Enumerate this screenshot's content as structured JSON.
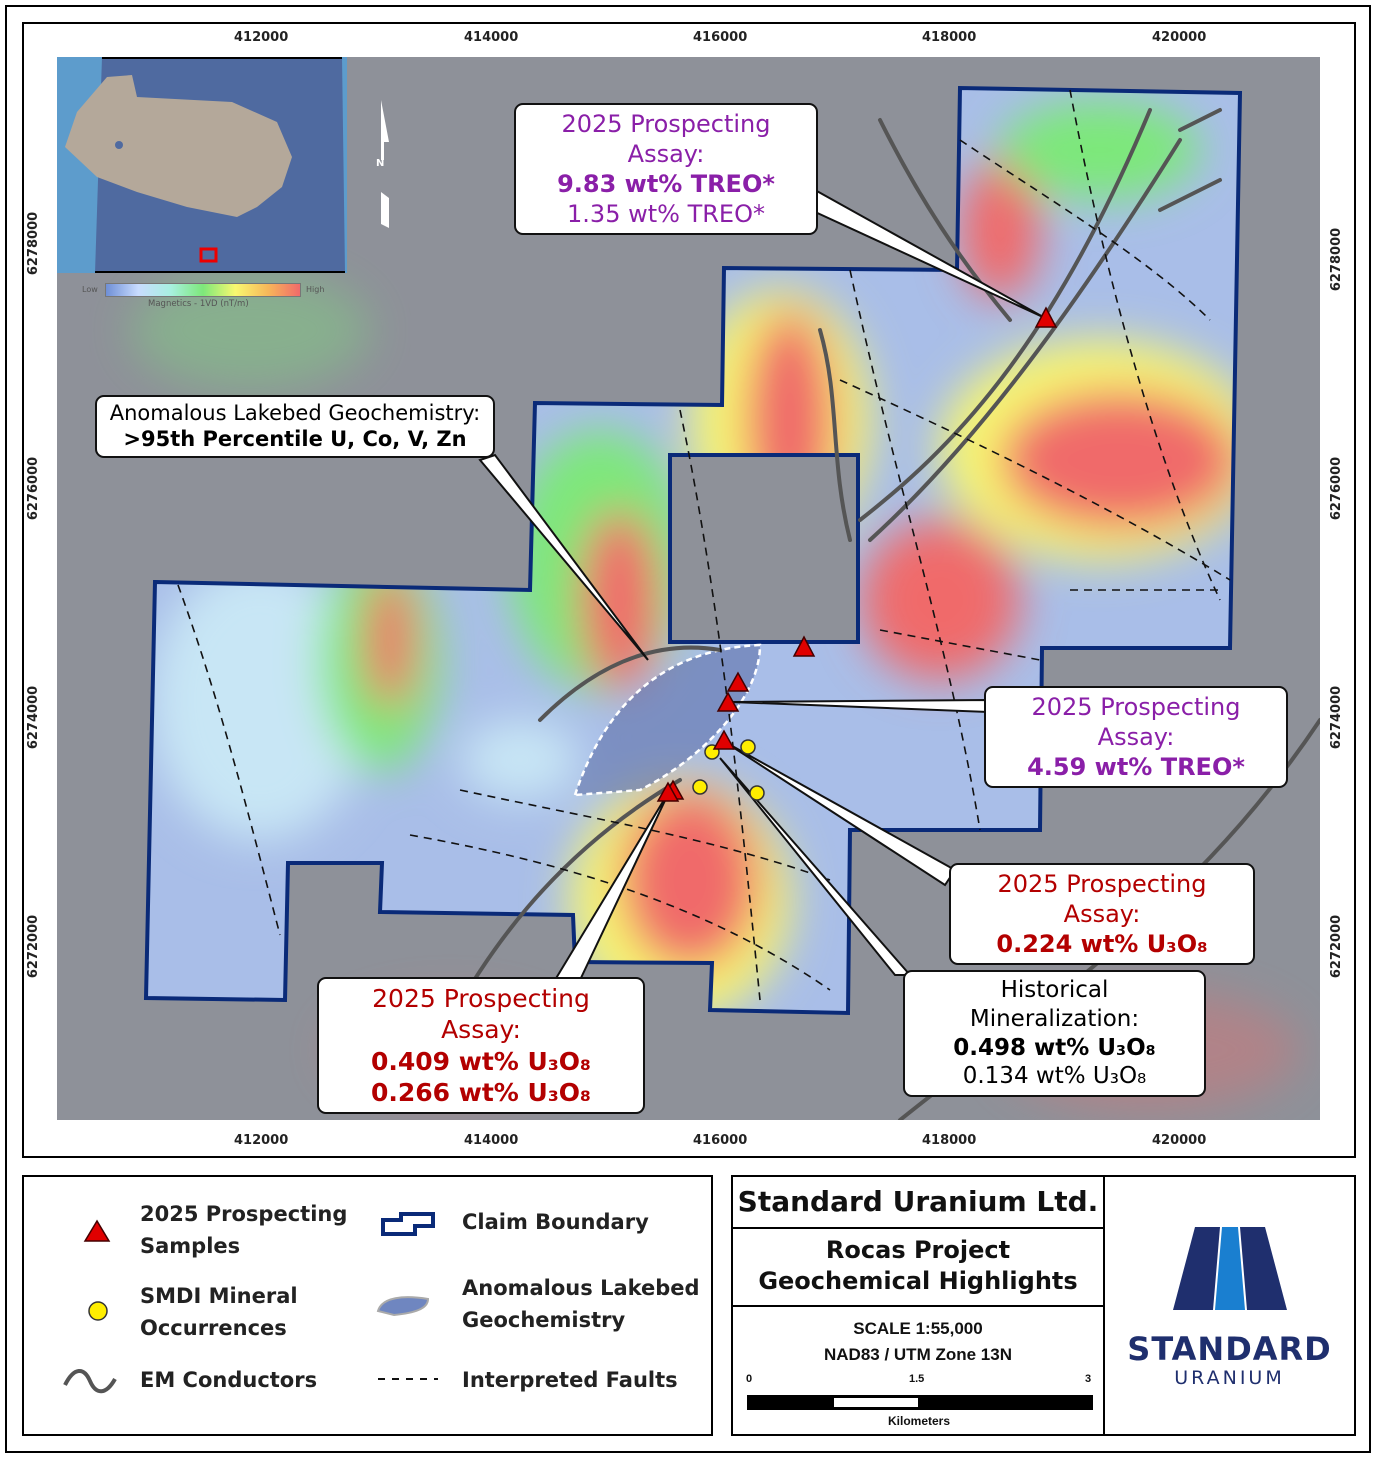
{
  "map": {
    "x_ticks": [
      "412000",
      "414000",
      "416000",
      "418000",
      "420000"
    ],
    "y_ticks": [
      "6278000",
      "6276000",
      "6274000",
      "6272000"
    ],
    "north_arrow": "N",
    "colorbar": {
      "low": "Low",
      "high": "High",
      "label": "Magnetics - 1VD (nT/m)",
      "colors": [
        "#6f8fd6",
        "#c8dcff",
        "#a8f0e0",
        "#7de87a",
        "#f8f870",
        "#f7b85a",
        "#f06a6a"
      ]
    },
    "callouts": [
      {
        "title": "2025 Prospecting Assay:",
        "lines": [
          "9.83 wt% TREO*",
          "1.35 wt% TREO*"
        ],
        "color": "#8a1fa8"
      },
      {
        "title": "Anomalous Lakebed Geochemistry:",
        "lines": [
          ">95th Percentile U, Co, V, Zn"
        ],
        "color": "#000000"
      },
      {
        "title": "2025 Prospecting Assay:",
        "lines": [
          "4.59 wt% TREO*"
        ],
        "color": "#8a1fa8"
      },
      {
        "title": "2025 Prospecting Assay:",
        "lines": [
          "0.224 wt% U₃O₈"
        ],
        "color": "#b30000"
      },
      {
        "title": "Historical Mineralization:",
        "lines": [
          "0.498 wt% U₃O₈",
          "0.134 wt% U₃O₈"
        ],
        "color": "#000000"
      },
      {
        "title": "2025 Prospecting Assay:",
        "lines": [
          "0.409 wt% U₃O₈",
          "0.266 wt% U₃O₈"
        ],
        "color": "#b30000"
      }
    ]
  },
  "legend": {
    "prospecting": "2025 Prospecting Samples",
    "smdi": "SMDI Mineral Occurrences",
    "em": "EM Conductors",
    "claim": "Claim Boundary",
    "lakebed": "Anomalous Lakebed Geochemistry",
    "faults": "Interpreted Faults"
  },
  "title": {
    "company": "Standard Uranium Ltd.",
    "project": "Rocas Project",
    "subtitle": "Geochemical Highlights",
    "scale": "SCALE 1:55,000",
    "datum": "NAD83 / UTM Zone 13N",
    "scalebar": [
      "0",
      "1.5",
      "3"
    ],
    "units": "Kilometers",
    "logo_top": "STANDARD",
    "logo_bottom": "URANIUM"
  },
  "colors": {
    "claim": "#0a2a78",
    "sample": "#e00000",
    "smdi": "#ffee00",
    "logo_dark": "#1f2f6e",
    "logo_light": "#1a7fd0"
  }
}
